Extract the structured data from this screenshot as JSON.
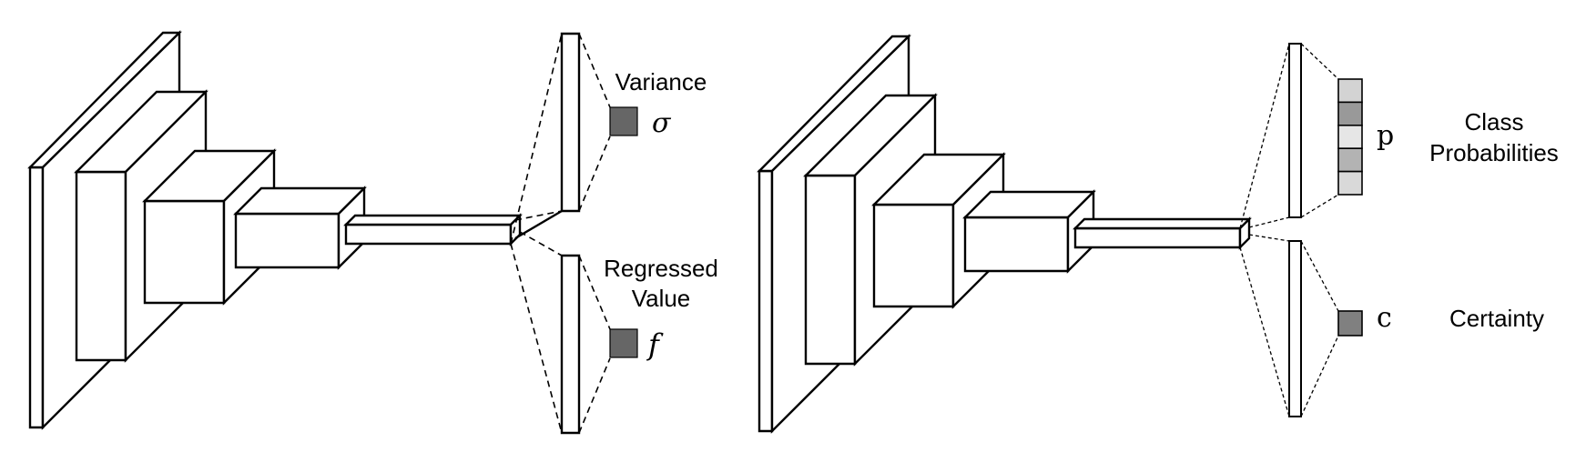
{
  "left": {
    "variance_label": "Variance",
    "variance_symbol": "σ",
    "regressed_label_line1": "Regressed",
    "regressed_label_line2": "Value",
    "regressed_symbol": "f"
  },
  "right": {
    "p_symbol": "p",
    "class_label_line1": "Class",
    "class_label_line2": "Probabilities",
    "c_symbol": "c",
    "certainty_label": "Certainty"
  },
  "colors": {
    "output_box_dark": "#666666",
    "prob_cells": [
      "#d3d3d3",
      "#999999",
      "#e6e6e6",
      "#b3b3b3",
      "#d9d9d9"
    ],
    "certainty_box": "#808080",
    "stroke": "#000000",
    "face": "#ffffff"
  }
}
